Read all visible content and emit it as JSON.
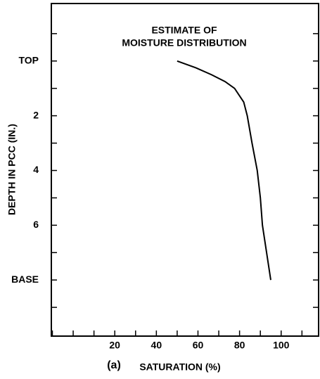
{
  "chart_data": {
    "type": "line",
    "title": [
      "ESTIMATE OF",
      "MOISTURE DISTRIBUTION"
    ],
    "panel_label": "(a)",
    "x_label": "SATURATION (%)",
    "y_label": "DEPTH IN PCC (IN.)",
    "x": [
      50,
      59,
      66.5,
      73,
      77.6,
      82,
      83.7,
      86,
      88.5,
      90,
      91,
      93,
      95
    ],
    "values": [
      0,
      0.25,
      0.5,
      0.75,
      1,
      1.5,
      2,
      3,
      4,
      5,
      6,
      7,
      8
    ],
    "color": "#000000",
    "xlim": [
      -10.5,
      118
    ],
    "ylim": [
      10.05,
      -2.1
    ],
    "xticks": [
      20,
      40,
      60,
      80,
      100
    ],
    "xticks_minor": [
      -10,
      0,
      10,
      30,
      50,
      70,
      90,
      110
    ],
    "yticks": [
      {
        "value": 0,
        "label": "TOP"
      },
      2,
      4,
      6,
      {
        "value": 8,
        "label": "BASE"
      }
    ],
    "yticks_minor": [
      -1,
      1,
      3,
      5,
      7,
      9
    ],
    "grid": false
  }
}
